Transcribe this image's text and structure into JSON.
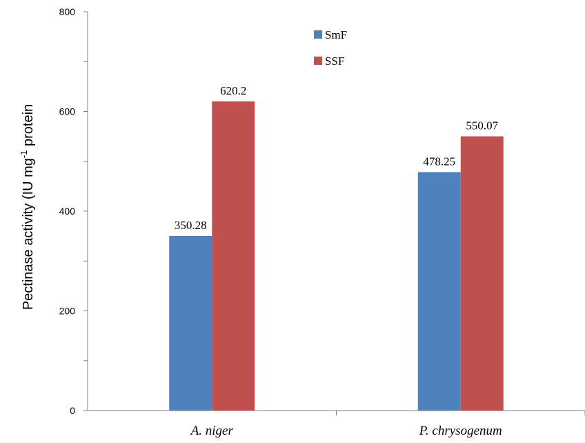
{
  "chart_data": {
    "type": "bar",
    "categories": [
      "A. niger",
      "P. chrysogenum"
    ],
    "series": [
      {
        "name": "SmF",
        "values": [
          350.28,
          478.25
        ],
        "color": "#4f81bd",
        "labels": [
          "350.28",
          "478.25"
        ]
      },
      {
        "name": "SSF",
        "values": [
          620.2,
          550.07
        ],
        "color": "#c0504d",
        "labels": [
          "620.2",
          "550.07"
        ]
      }
    ],
    "ylabel_main": "Pectinase activity (IU mg",
    "ylabel_sup": "-1",
    "ylabel_tail": " protein",
    "ylim": [
      0,
      800
    ],
    "yticks": [
      "0",
      "200",
      "400",
      "600",
      "800"
    ],
    "ytick_values": [
      0,
      200,
      400,
      600,
      800
    ],
    "minor_tick_step": 100,
    "grid": false,
    "legend_position": "top-center"
  }
}
